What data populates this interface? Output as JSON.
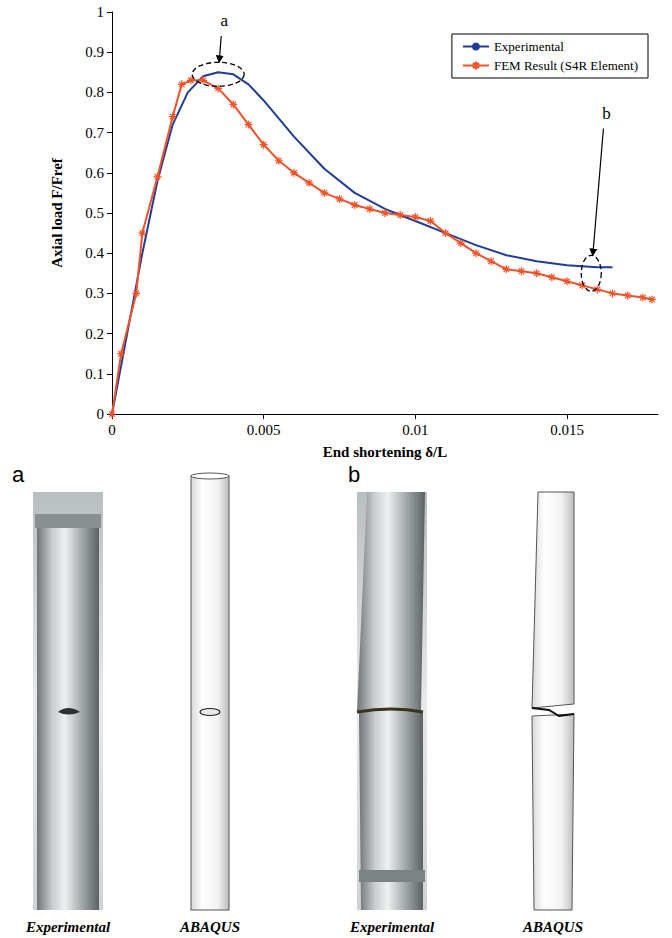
{
  "chart_data": {
    "type": "line",
    "x_label": "End shortening δ/L",
    "y_label": "Axial load F/Fref",
    "xlim": [
      0,
      0.018
    ],
    "xticks": [
      0,
      0.005,
      0.01,
      0.015
    ],
    "ylim": [
      0,
      1
    ],
    "yticks": [
      0,
      0.1,
      0.2,
      0.3,
      0.4,
      0.5,
      0.6,
      0.7,
      0.8,
      0.9,
      1
    ],
    "grid": false,
    "legend": "upper right",
    "series": [
      {
        "name": "Experimental",
        "color": "#1f3c98",
        "line_style": "solid",
        "marker": "none",
        "x": [
          0,
          0.0005,
          0.001,
          0.0015,
          0.002,
          0.0025,
          0.003,
          0.0035,
          0.004,
          0.0045,
          0.005,
          0.006,
          0.007,
          0.008,
          0.009,
          0.01,
          0.011,
          0.012,
          0.013,
          0.014,
          0.015,
          0.016,
          0.0165
        ],
        "values": [
          0,
          0.2,
          0.4,
          0.58,
          0.72,
          0.8,
          0.84,
          0.85,
          0.845,
          0.82,
          0.78,
          0.69,
          0.61,
          0.55,
          0.51,
          0.48,
          0.45,
          0.42,
          0.395,
          0.38,
          0.37,
          0.365,
          0.365
        ]
      },
      {
        "name": "FEM Result (S4R Element)",
        "color": "#f0522a",
        "line_style": "solid",
        "marker": "asterisk",
        "x": [
          0,
          0.0003,
          0.0008,
          0.001,
          0.0015,
          0.002,
          0.0023,
          0.0026,
          0.003,
          0.0035,
          0.004,
          0.0045,
          0.005,
          0.0055,
          0.006,
          0.0065,
          0.007,
          0.0075,
          0.008,
          0.0085,
          0.009,
          0.0095,
          0.01,
          0.0105,
          0.011,
          0.0115,
          0.012,
          0.0125,
          0.013,
          0.0135,
          0.014,
          0.0145,
          0.015,
          0.0155,
          0.016,
          0.0165,
          0.017,
          0.0175,
          0.0178
        ],
        "values": [
          0,
          0.15,
          0.3,
          0.45,
          0.59,
          0.74,
          0.82,
          0.83,
          0.83,
          0.81,
          0.77,
          0.72,
          0.67,
          0.63,
          0.6,
          0.575,
          0.55,
          0.535,
          0.52,
          0.51,
          0.5,
          0.495,
          0.49,
          0.48,
          0.45,
          0.425,
          0.4,
          0.38,
          0.36,
          0.355,
          0.35,
          0.34,
          0.33,
          0.32,
          0.31,
          0.3,
          0.295,
          0.29,
          0.285
        ]
      }
    ],
    "annotations": [
      {
        "text": "a",
        "x": 0.0037,
        "y": 0.97,
        "target_x": 0.0035,
        "target_y": 0.845
      },
      {
        "text": "b",
        "x": 0.0163,
        "y": 0.74,
        "target_x": 0.0158,
        "target_y": 0.35
      }
    ]
  },
  "panels": [
    {
      "letter": "a",
      "images": [
        "Experimental",
        "ABAQUS"
      ]
    },
    {
      "letter": "b",
      "images": [
        "Experimental",
        "ABAQUS"
      ]
    }
  ]
}
